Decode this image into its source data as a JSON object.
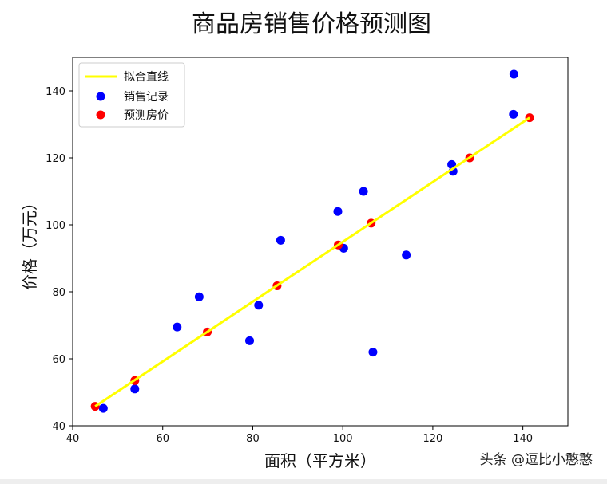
{
  "chart_data": {
    "type": "scatter",
    "title": "商品房销售价格预测图",
    "xlabel": "面积（平方米）",
    "ylabel": "价格（万元）",
    "xlim": [
      40,
      150
    ],
    "ylim": [
      40,
      150
    ],
    "xticks": [
      40,
      60,
      80,
      100,
      120,
      140
    ],
    "yticks": [
      40,
      60,
      80,
      100,
      120,
      140
    ],
    "grid": false,
    "legend_position": "upper-left",
    "series": [
      {
        "name": "拟合直线",
        "kind": "line",
        "color": "#ffff00",
        "x": [
          45.0,
          141.5
        ],
        "y": [
          45.8,
          132.0
        ]
      },
      {
        "name": "销售记录",
        "kind": "scatter",
        "color": "#0000ff",
        "x": [
          46.8,
          53.8,
          63.2,
          68.1,
          79.3,
          81.3,
          86.2,
          98.9,
          100.2,
          104.6,
          106.7,
          114.1,
          124.2,
          124.5,
          137.9,
          138.0
        ],
        "y": [
          45.2,
          51.0,
          69.5,
          78.5,
          65.4,
          76.0,
          95.4,
          104.0,
          93.0,
          110.0,
          62.0,
          91.0,
          118.0,
          116.0,
          133.0,
          145.0
        ]
      },
      {
        "name": "预测房价",
        "kind": "scatter",
        "color": "#ff0000",
        "x": [
          45.0,
          53.8,
          69.9,
          85.4,
          99.0,
          106.3,
          128.2,
          141.5
        ],
        "y": [
          45.8,
          53.5,
          68.0,
          81.8,
          94.0,
          100.5,
          120.0,
          132.0
        ]
      }
    ]
  },
  "watermark": "头条 @逗比小憨憨"
}
